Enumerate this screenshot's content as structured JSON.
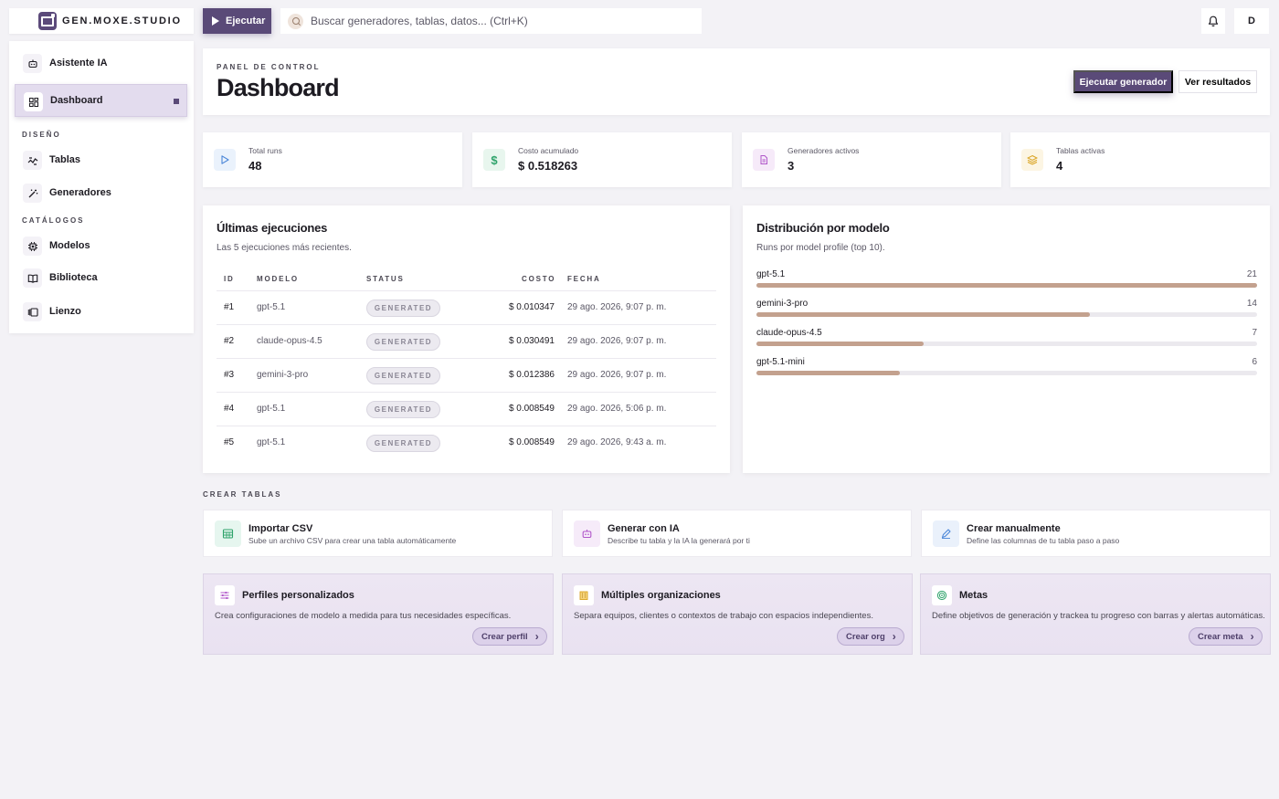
{
  "brand": {
    "name": "GEN.MOXE.STUDIO"
  },
  "toolbar": {
    "run_label": "Ejecutar",
    "search_placeholder": "Buscar generadores, tablas, datos... (Ctrl+K)",
    "avatar_initial": "D"
  },
  "sidebar": {
    "items": [
      {
        "label": "Asistente IA",
        "icon": "robot-icon"
      },
      {
        "label": "Dashboard",
        "icon": "grid-icon",
        "active": true
      },
      {
        "label": "Tablas",
        "icon": "wave-icon"
      },
      {
        "label": "Generadores",
        "icon": "wand-icon"
      },
      {
        "label": "Modelos",
        "icon": "chip-icon"
      },
      {
        "label": "Biblioteca",
        "icon": "book-icon"
      },
      {
        "label": "Lienzo",
        "icon": "canvas-icon"
      }
    ],
    "sections": {
      "design": "DISEÑO",
      "catalogs": "CATÁLOGOS"
    }
  },
  "header": {
    "eyebrow": "PANEL DE CONTROL",
    "title": "Dashboard",
    "primary_action": "Ejecutar generador",
    "secondary_action": "Ver resultados"
  },
  "stats": [
    {
      "label": "Total runs",
      "value": "48",
      "icon": "play-icon",
      "color": "#4a86d8"
    },
    {
      "label": "Costo acumulado",
      "value": "$ 0.518263",
      "icon": "dollar-icon",
      "color": "#2fa36b"
    },
    {
      "label": "Generadores activos",
      "value": "3",
      "icon": "document-icon",
      "color": "#b056c9"
    },
    {
      "label": "Tablas activas",
      "value": "4",
      "icon": "layers-icon",
      "color": "#d9a21f"
    }
  ],
  "runs": {
    "title": "Últimas ejecuciones",
    "subtitle": "Las 5 ejecuciones más recientes.",
    "columns": [
      "ID",
      "MODELO",
      "STATUS",
      "COSTO",
      "FECHA"
    ],
    "rows": [
      {
        "id": "#1",
        "model": "gpt-5.1",
        "status": "GENERATED",
        "cost": "$ 0.010347",
        "date": "29 ago. 2026, 9:07 p. m."
      },
      {
        "id": "#2",
        "model": "claude-opus-4.5",
        "status": "GENERATED",
        "cost": "$ 0.030491",
        "date": "29 ago. 2026, 9:07 p. m."
      },
      {
        "id": "#3",
        "model": "gemini-3-pro",
        "status": "GENERATED",
        "cost": "$ 0.012386",
        "date": "29 ago. 2026, 9:07 p. m."
      },
      {
        "id": "#4",
        "model": "gpt-5.1",
        "status": "GENERATED",
        "cost": "$ 0.008549",
        "date": "29 ago. 2026, 5:06 p. m."
      },
      {
        "id": "#5",
        "model": "gpt-5.1",
        "status": "GENERATED",
        "cost": "$ 0.008549",
        "date": "29 ago. 2026, 9:43 a. m."
      }
    ]
  },
  "distribution": {
    "title": "Distribución por modelo",
    "subtitle": "Runs por model profile (top 10).",
    "max": 21,
    "items": [
      {
        "name": "gpt-5.1",
        "count": 21
      },
      {
        "name": "gemini-3-pro",
        "count": 14
      },
      {
        "name": "claude-opus-4.5",
        "count": 7
      },
      {
        "name": "gpt-5.1-mini",
        "count": 6
      }
    ],
    "bar_color": "#c3a18e"
  },
  "create": {
    "label": "CREAR TABLAS",
    "cards": [
      {
        "title": "Importar CSV",
        "desc": "Sube un archivo CSV para crear una tabla automáticamente",
        "icon": "table-icon"
      },
      {
        "title": "Generar con IA",
        "desc": "Describe tu tabla y la IA la generará por ti",
        "icon": "robot-icon"
      },
      {
        "title": "Crear manualmente",
        "desc": "Define las columnas de tu tabla paso a paso",
        "icon": "pen-icon"
      }
    ]
  },
  "promos": [
    {
      "title": "Perfiles personalizados",
      "desc": "Crea configuraciones de modelo a medida para tus necesidades específicas.",
      "action": "Crear perfil",
      "icon": "sliders-icon"
    },
    {
      "title": "Múltiples organizaciones",
      "desc": "Separa equipos, clientes o contextos de trabajo con espacios independientes.",
      "action": "Crear org",
      "icon": "building-icon"
    },
    {
      "title": "Metas",
      "desc": "Define objetivos de generación y trackea tu progreso con barras y alertas automáticas.",
      "action": "Crear meta",
      "icon": "target-icon"
    }
  ],
  "colors": {
    "accent": "#5a4a78",
    "background": "#f3f2f6"
  }
}
